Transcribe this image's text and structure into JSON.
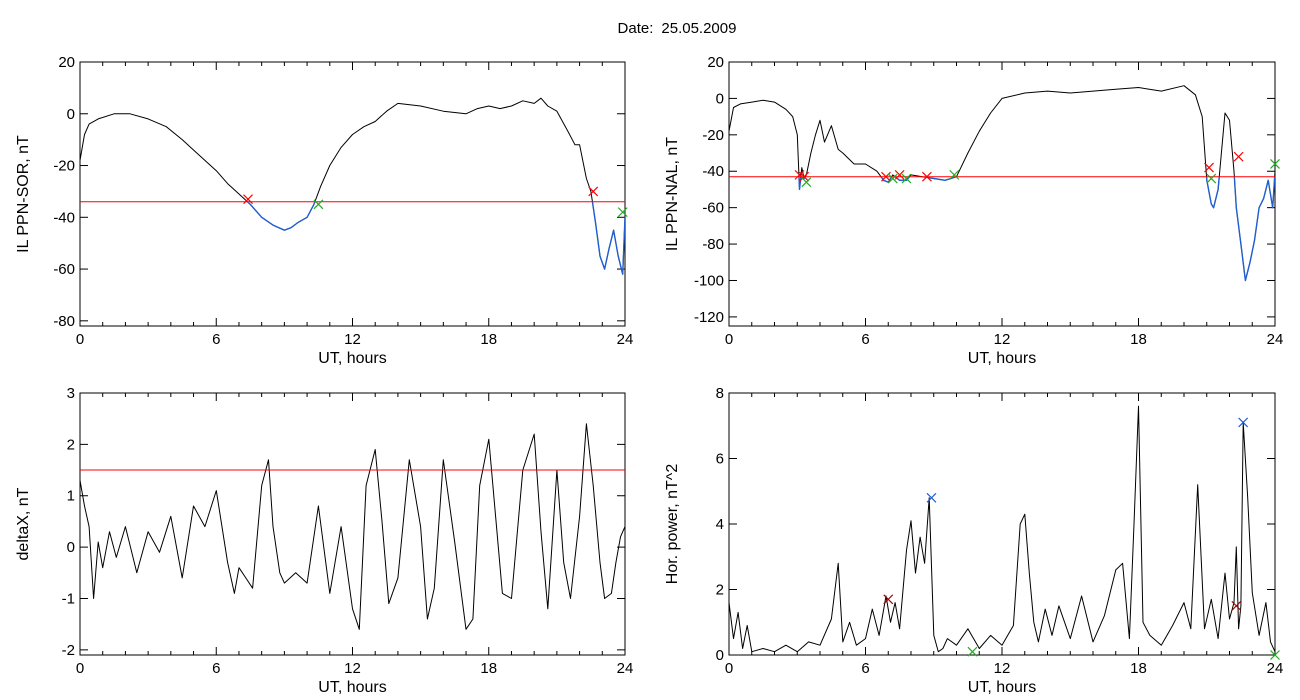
{
  "header": {
    "date_label": "Date:",
    "date_value": "25.05.2009"
  },
  "colors": {
    "trace": "#000000",
    "threshold": "#ff0000",
    "below_threshold": "#1f5fd0",
    "marker_red": "#ff0000",
    "marker_green": "#22aa22",
    "marker_blue": "#1f5fd0",
    "marker_dark": "#a00000"
  },
  "chart_data": [
    {
      "id": "ppn-sor",
      "type": "line",
      "xlabel": "UT, hours",
      "ylabel": "IL PPN-SOR, nT",
      "xlim": [
        0,
        24
      ],
      "ylim": [
        -82,
        20
      ],
      "xticks": [
        0,
        6,
        12,
        18,
        24
      ],
      "yticks": [
        20,
        0,
        -20,
        -40,
        -60,
        -80
      ],
      "threshold": -34,
      "highlight_below_threshold": true,
      "x": [
        0,
        0.2,
        0.4,
        0.8,
        1.5,
        2.2,
        3,
        3.8,
        4.5,
        5,
        5.5,
        6,
        6.5,
        7,
        7.5,
        8,
        8.5,
        9,
        9.3,
        9.6,
        10,
        10.3,
        10.6,
        11,
        11.5,
        12,
        12.5,
        13,
        13.5,
        14,
        15,
        16,
        17,
        17.5,
        18,
        18.5,
        19,
        19.5,
        20,
        20.3,
        20.6,
        21,
        21.5,
        21.8,
        22,
        22.3,
        22.5,
        22.7,
        22.9,
        23.1,
        23.3,
        23.5,
        23.7,
        23.9,
        24
      ],
      "y": [
        -18,
        -8,
        -4,
        -2,
        0,
        0,
        -2,
        -5,
        -10,
        -14,
        -18,
        -22,
        -27,
        -31,
        -35,
        -40,
        -43,
        -45,
        -44,
        -42,
        -40,
        -35,
        -28,
        -20,
        -13,
        -8,
        -5,
        -3,
        1,
        4,
        3,
        1,
        0,
        2,
        3,
        2,
        3,
        5,
        4,
        6,
        3,
        1,
        -7,
        -12,
        -12,
        -25,
        -30,
        -42,
        -55,
        -60,
        -52,
        -45,
        -55,
        -62,
        -40
      ],
      "markers": [
        {
          "x": 7.4,
          "y": -33,
          "symbol": "x",
          "color": "red"
        },
        {
          "x": 22.6,
          "y": -30,
          "symbol": "x",
          "color": "red"
        },
        {
          "x": 10.5,
          "y": -35,
          "symbol": "x",
          "color": "green"
        },
        {
          "x": 23.9,
          "y": -38,
          "symbol": "x",
          "color": "green"
        }
      ]
    },
    {
      "id": "ppn-nal",
      "type": "line",
      "xlabel": "UT, hours",
      "ylabel": "IL PPN-NAL, nT",
      "xlim": [
        0,
        24
      ],
      "ylim": [
        -125,
        20
      ],
      "xticks": [
        0,
        6,
        12,
        18,
        24
      ],
      "yticks": [
        20,
        0,
        -20,
        -40,
        -60,
        -80,
        -100,
        -120
      ],
      "threshold": -43,
      "highlight_below_threshold": true,
      "x": [
        0,
        0.2,
        0.5,
        1,
        1.5,
        2,
        2.5,
        2.8,
        3,
        3.1,
        3.2,
        3.3,
        3.4,
        3.6,
        3.8,
        4,
        4.2,
        4.5,
        4.8,
        5,
        5.5,
        6,
        6.5,
        6.8,
        7,
        7.2,
        7.5,
        7.8,
        8,
        8.5,
        9,
        9.5,
        10,
        10.5,
        11,
        11.5,
        12,
        13,
        14,
        15,
        16,
        17,
        18,
        19,
        20,
        20.5,
        20.8,
        21,
        21.2,
        21.3,
        21.5,
        21.8,
        22,
        22.2,
        22.3,
        22.5,
        22.7,
        22.9,
        23.1,
        23.3,
        23.5,
        23.7,
        23.9,
        24
      ],
      "y": [
        -18,
        -5,
        -3,
        -2,
        -1,
        -2,
        -6,
        -10,
        -20,
        -50,
        -38,
        -44,
        -42,
        -30,
        -20,
        -12,
        -24,
        -15,
        -28,
        -30,
        -36,
        -36,
        -40,
        -45,
        -46,
        -42,
        -45,
        -45,
        -42,
        -43,
        -44,
        -45,
        -43,
        -30,
        -18,
        -8,
        0,
        3,
        4,
        3,
        4,
        5,
        6,
        4,
        7,
        2,
        -10,
        -45,
        -58,
        -60,
        -50,
        -8,
        -12,
        -40,
        -60,
        -80,
        -100,
        -90,
        -78,
        -60,
        -55,
        -45,
        -60,
        -40
      ],
      "markers": [
        {
          "x": 3.1,
          "y": -42,
          "symbol": "x",
          "color": "red"
        },
        {
          "x": 3.3,
          "y": -43,
          "symbol": "x",
          "color": "red"
        },
        {
          "x": 6.9,
          "y": -43,
          "symbol": "x",
          "color": "red"
        },
        {
          "x": 7.5,
          "y": -42,
          "symbol": "x",
          "color": "red"
        },
        {
          "x": 8.7,
          "y": -43,
          "symbol": "x",
          "color": "red"
        },
        {
          "x": 21.1,
          "y": -38,
          "symbol": "x",
          "color": "red"
        },
        {
          "x": 22.4,
          "y": -32,
          "symbol": "x",
          "color": "red"
        },
        {
          "x": 3.4,
          "y": -46,
          "symbol": "x",
          "color": "green"
        },
        {
          "x": 7.2,
          "y": -44,
          "symbol": "x",
          "color": "green"
        },
        {
          "x": 7.8,
          "y": -44,
          "symbol": "x",
          "color": "green"
        },
        {
          "x": 9.9,
          "y": -42,
          "symbol": "x",
          "color": "green"
        },
        {
          "x": 21.2,
          "y": -44,
          "symbol": "x",
          "color": "green"
        },
        {
          "x": 24,
          "y": -36,
          "symbol": "x",
          "color": "green"
        }
      ]
    },
    {
      "id": "deltax",
      "type": "line",
      "xlabel": "UT, hours",
      "ylabel": "deltaX, nT",
      "xlim": [
        0,
        24
      ],
      "ylim": [
        -2.1,
        3
      ],
      "xticks": [
        0,
        6,
        12,
        18,
        24
      ],
      "yticks": [
        3,
        2,
        1,
        0,
        -1,
        -2
      ],
      "threshold": 1.5,
      "highlight_below_threshold": false,
      "x": [
        0,
        0.2,
        0.4,
        0.6,
        0.8,
        1,
        1.3,
        1.6,
        2,
        2.5,
        3,
        3.5,
        4,
        4.5,
        5,
        5.5,
        6,
        6.5,
        6.8,
        7,
        7.3,
        7.6,
        8,
        8.3,
        8.5,
        8.8,
        9,
        9.5,
        10,
        10.5,
        11,
        11.5,
        12,
        12.3,
        12.6,
        13,
        13.3,
        13.6,
        14,
        14.5,
        15,
        15.3,
        15.6,
        16,
        16.5,
        17,
        17.3,
        17.6,
        18,
        18.3,
        18.6,
        19,
        19.5,
        20,
        20.3,
        20.6,
        21,
        21.3,
        21.6,
        22,
        22.3,
        22.6,
        22.9,
        23.1,
        23.4,
        23.6,
        23.8,
        24
      ],
      "y": [
        1.3,
        0.8,
        0.4,
        -1,
        0.1,
        -0.4,
        0.3,
        -0.2,
        0.4,
        -0.5,
        0.3,
        -0.1,
        0.6,
        -0.6,
        0.8,
        0.4,
        1.1,
        -0.3,
        -0.9,
        -0.4,
        -0.6,
        -0.8,
        1.2,
        1.7,
        0.4,
        -0.5,
        -0.7,
        -0.5,
        -0.7,
        0.8,
        -0.9,
        0.4,
        -1.2,
        -1.6,
        1.2,
        1.9,
        0.5,
        -1.1,
        -0.6,
        1.7,
        0.4,
        -1.4,
        -0.8,
        1.7,
        0.1,
        -1.6,
        -1.4,
        1.2,
        2.1,
        0.6,
        -0.9,
        -1.0,
        1.5,
        2.2,
        0.3,
        -1.2,
        1.5,
        -0.3,
        -1.0,
        0.6,
        2.4,
        1.2,
        -0.3,
        -1.0,
        -0.9,
        -0.3,
        0.2,
        0.4
      ]
    },
    {
      "id": "hor-power",
      "type": "line",
      "xlabel": "UT, hours",
      "ylabel": "Hor. power, nT^2",
      "xlim": [
        0,
        24
      ],
      "ylim": [
        0,
        8
      ],
      "xticks": [
        0,
        6,
        12,
        18,
        24
      ],
      "yticks": [
        8,
        6,
        4,
        2,
        0
      ],
      "highlight_below_threshold": false,
      "x": [
        0,
        0.2,
        0.4,
        0.6,
        0.8,
        1,
        1.5,
        2,
        2.5,
        3,
        3.5,
        4,
        4.5,
        4.8,
        5,
        5.3,
        5.6,
        6,
        6.3,
        6.6,
        6.9,
        7.1,
        7.3,
        7.5,
        7.8,
        8,
        8.2,
        8.4,
        8.6,
        8.8,
        9,
        9.2,
        9.4,
        9.6,
        10,
        10.5,
        11,
        11.5,
        12,
        12.5,
        12.8,
        13,
        13.2,
        13.4,
        13.6,
        13.9,
        14.2,
        14.5,
        15,
        15.5,
        16,
        16.5,
        17,
        17.3,
        17.6,
        17.8,
        18,
        18.2,
        18.5,
        19,
        19.5,
        20,
        20.3,
        20.6,
        20.9,
        21.2,
        21.5,
        21.8,
        22,
        22.2,
        22.3,
        22.4,
        22.5,
        22.6,
        22.8,
        23,
        23.3,
        23.6,
        23.8,
        24
      ],
      "y": [
        1.6,
        0.5,
        1.3,
        0.2,
        0.9,
        0.1,
        0.2,
        0.1,
        0.3,
        0.1,
        0.4,
        0.3,
        1.1,
        2.8,
        0.4,
        1.0,
        0.3,
        0.5,
        1.4,
        0.6,
        1.8,
        1.0,
        1.6,
        0.8,
        3.2,
        4.1,
        2.5,
        3.6,
        2.8,
        4.8,
        0.6,
        0.1,
        0.2,
        0.5,
        0.3,
        0.8,
        0.2,
        0.6,
        0.3,
        0.9,
        4.0,
        4.3,
        2.5,
        1.0,
        0.4,
        1.4,
        0.6,
        1.5,
        0.5,
        1.8,
        0.4,
        1.2,
        2.6,
        2.8,
        0.5,
        4.0,
        7.6,
        1.0,
        0.6,
        0.3,
        0.9,
        1.6,
        0.8,
        5.2,
        0.8,
        1.7,
        0.5,
        2.5,
        1.1,
        1.6,
        3.3,
        0.8,
        1.5,
        7.1,
        4.8,
        1.9,
        0.6,
        1.6,
        0.4,
        0.1
      ],
      "markers": [
        {
          "x": 7.0,
          "y": 1.7,
          "symbol": "x",
          "color": "dark"
        },
        {
          "x": 8.9,
          "y": 4.8,
          "symbol": "x",
          "color": "blue"
        },
        {
          "x": 22.3,
          "y": 1.5,
          "symbol": "x",
          "color": "dark"
        },
        {
          "x": 22.6,
          "y": 7.1,
          "symbol": "x",
          "color": "blue"
        },
        {
          "x": 10.7,
          "y": 0.1,
          "symbol": "x",
          "color": "green"
        },
        {
          "x": 24,
          "y": 0.0,
          "symbol": "x",
          "color": "green"
        }
      ]
    }
  ]
}
